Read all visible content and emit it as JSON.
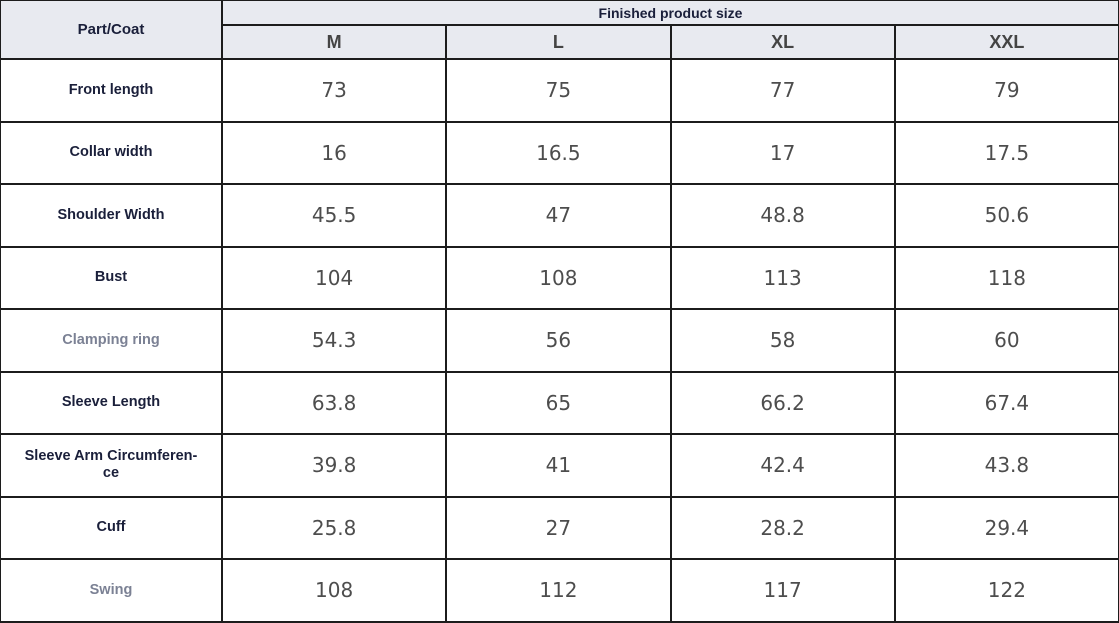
{
  "table": {
    "corner_label": "Part/Coat",
    "group_label": "Finished product size",
    "sizes": [
      "M",
      "L",
      "XL",
      "XXL"
    ],
    "rows": [
      {
        "label": "Front length",
        "muted": false,
        "values": [
          "73",
          "75",
          "77",
          "79"
        ]
      },
      {
        "label": "Collar width",
        "muted": false,
        "values": [
          "16",
          "16.5",
          "17",
          "17.5"
        ]
      },
      {
        "label": "Shoulder Width",
        "muted": false,
        "values": [
          "45.5",
          "47",
          "48.8",
          "50.6"
        ]
      },
      {
        "label": "Bust",
        "muted": false,
        "values": [
          "104",
          "108",
          "113",
          "118"
        ]
      },
      {
        "label": "Clamping ring",
        "muted": true,
        "values": [
          "54.3",
          "56",
          "58",
          "60"
        ]
      },
      {
        "label": "Sleeve Length",
        "muted": false,
        "values": [
          "63.8",
          "65",
          "66.2",
          "67.4"
        ]
      },
      {
        "label": "Sleeve Arm Circumferen-ce",
        "muted": false,
        "values": [
          "39.8",
          "41",
          "42.4",
          "43.8"
        ]
      },
      {
        "label": "Cuff",
        "muted": false,
        "values": [
          "25.8",
          "27",
          "28.2",
          "29.4"
        ]
      },
      {
        "label": "Swing",
        "muted": true,
        "values": [
          "108",
          "112",
          "117",
          "122"
        ]
      }
    ]
  },
  "colors": {
    "header_bg": "#e8eaf0",
    "label_text": "#1a1f3a",
    "muted_label_text": "#7b8194",
    "value_text": "#4d4d4d"
  }
}
